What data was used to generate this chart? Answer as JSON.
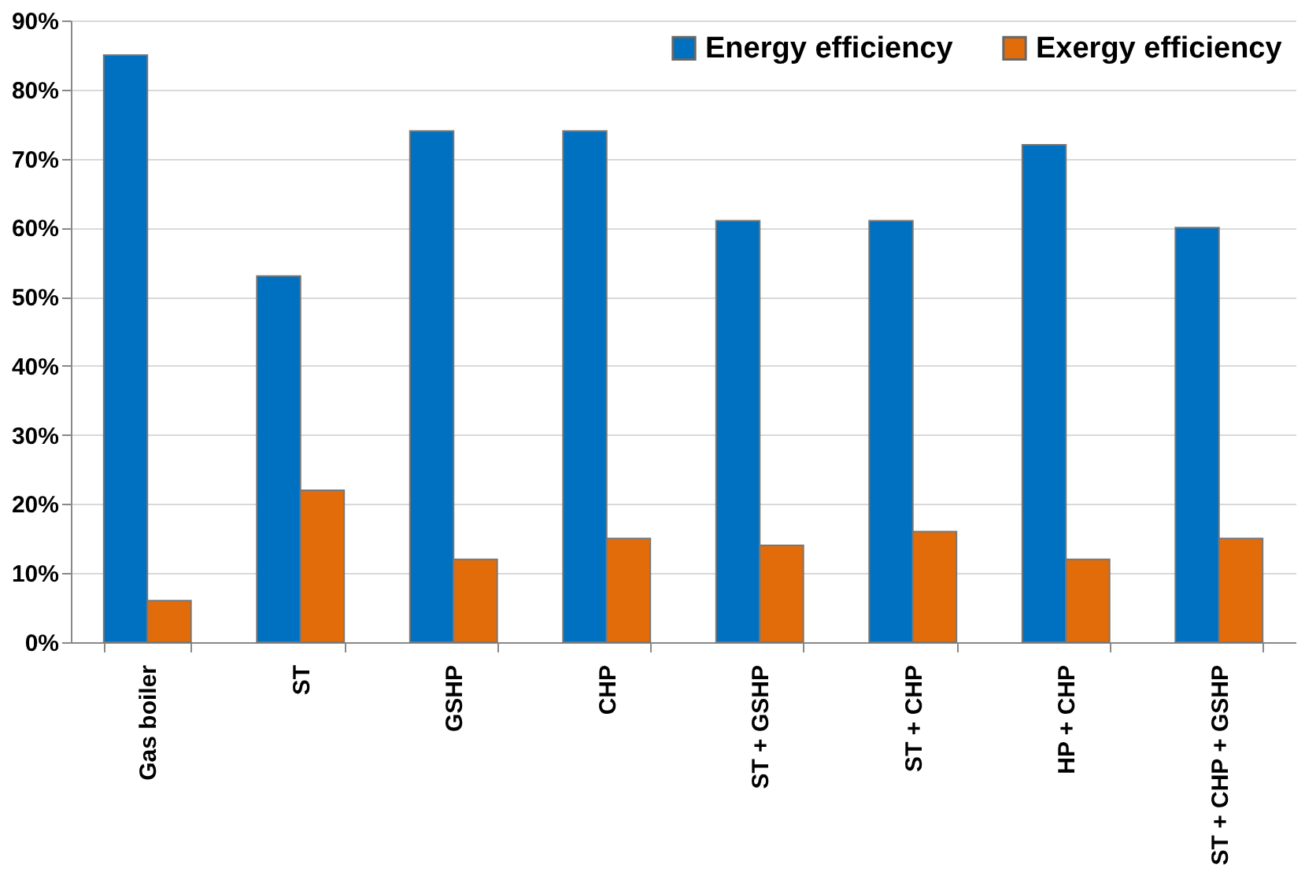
{
  "chart_data": {
    "type": "bar",
    "categories": [
      "Gas boiler",
      "ST",
      "GSHP",
      "CHP",
      "ST + GSHP",
      "ST + CHP",
      "HP + CHP",
      "ST + CHP + GSHP"
    ],
    "series": [
      {
        "name": "Energy efficiency",
        "color": "#0070c0",
        "values": [
          85,
          53,
          74,
          74,
          61,
          61,
          72,
          60
        ]
      },
      {
        "name": "Exergy efficiency",
        "color": "#e36c0a",
        "values": [
          6,
          22,
          12,
          15,
          14,
          16,
          12,
          15
        ]
      }
    ],
    "ylim": [
      0,
      90
    ],
    "yticks": [
      {
        "value": 0,
        "label": "0%"
      },
      {
        "value": 10,
        "label": "10%"
      },
      {
        "value": 20,
        "label": "20%"
      },
      {
        "value": 30,
        "label": "30%"
      },
      {
        "value": 40,
        "label": "40%"
      },
      {
        "value": 50,
        "label": "50%"
      },
      {
        "value": 60,
        "label": "60%"
      },
      {
        "value": 70,
        "label": "70%"
      },
      {
        "value": 80,
        "label": "80%"
      },
      {
        "value": 90,
        "label": "90%"
      }
    ],
    "grid": "y",
    "legend": "top right"
  }
}
